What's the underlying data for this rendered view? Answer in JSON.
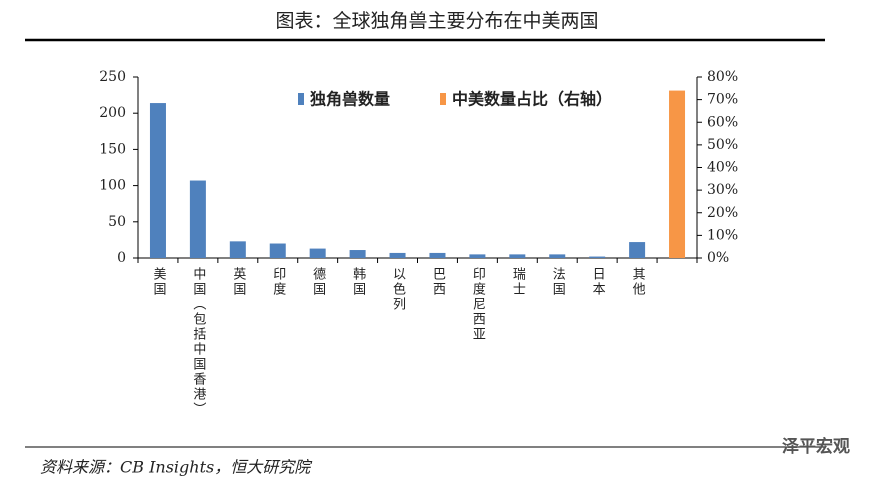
{
  "chart_data": {
    "type": "bar",
    "title": "图表：全球独角兽主要分布在中美两国",
    "source": "资料来源：CB Insights，恒大研究院",
    "watermark": "泽平宏观",
    "categories": [
      "美国",
      "中国（包括中国香港）",
      "英国",
      "印度",
      "德国",
      "韩国",
      "以色列",
      "巴西",
      "印度尼西亚",
      "瑞士",
      "法国",
      "日本",
      "其他",
      null
    ],
    "series": [
      {
        "name": "独角兽数量",
        "color": "#4f81bd",
        "values": [
          214,
          107,
          23,
          20,
          13,
          11,
          7,
          7,
          5,
          5,
          5,
          2,
          22,
          null
        ]
      },
      {
        "name": "中美数量占比（右轴）",
        "color": "#f79646",
        "axis": "y2",
        "values": [
          null,
          null,
          null,
          null,
          null,
          null,
          null,
          null,
          null,
          null,
          null,
          null,
          null,
          74
        ]
      }
    ],
    "ylim": [
      0,
      250
    ],
    "yticks": [
      0,
      50,
      100,
      150,
      200,
      250
    ],
    "y2lim": [
      0,
      80
    ],
    "y2ticks": [
      {
        "value": 0,
        "label": "0%"
      },
      {
        "value": 10,
        "label": "10%"
      },
      {
        "value": 20,
        "label": "20%"
      },
      {
        "value": 30,
        "label": "30%"
      },
      {
        "value": 40,
        "label": "40%"
      },
      {
        "value": 50,
        "label": "50%"
      },
      {
        "value": 60,
        "label": "60%"
      },
      {
        "value": 70,
        "label": "70%"
      },
      {
        "value": 80,
        "label": "80%"
      }
    ],
    "legend": "top"
  }
}
